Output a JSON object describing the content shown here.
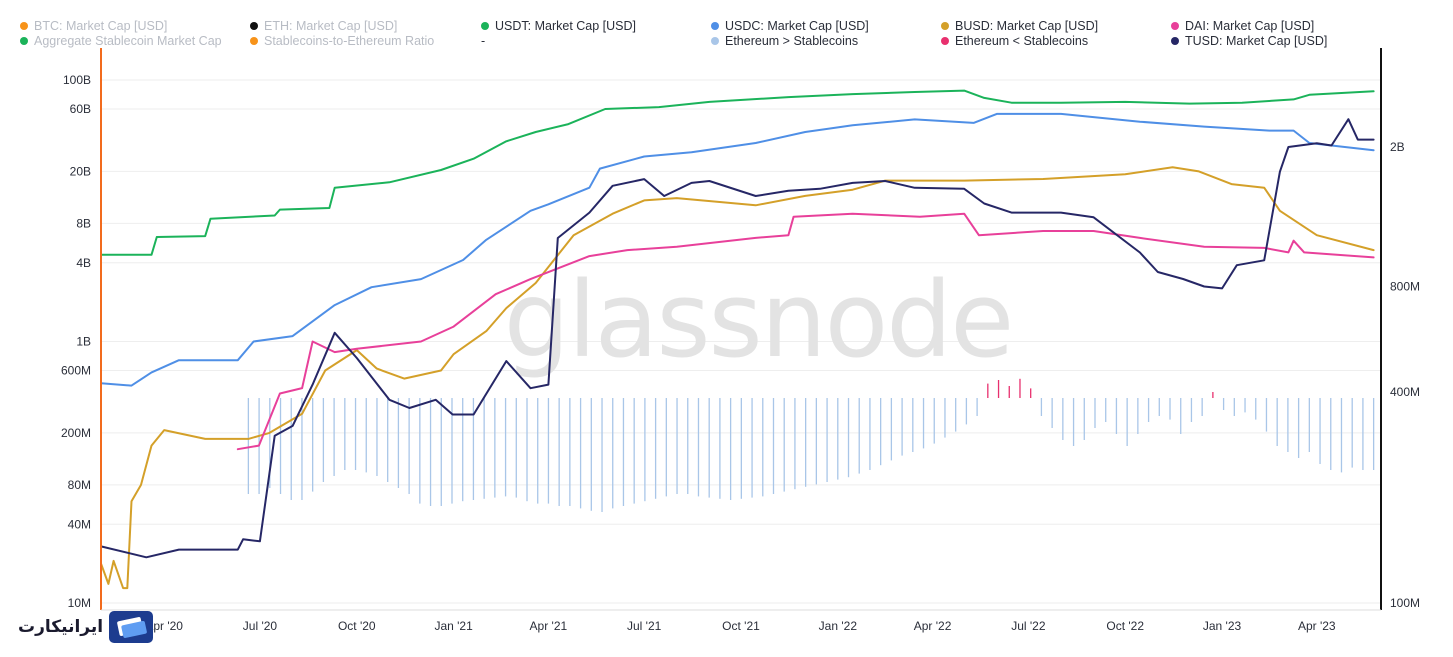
{
  "brand": {
    "watermark": "glassnode",
    "site_logo_text": "ایرانیکارت"
  },
  "legend": [
    {
      "label": "BTC: Market Cap [USD]",
      "color": "#f7931a",
      "active": false
    },
    {
      "label": "ETH: Market Cap [USD]",
      "color": "#111111",
      "active": false
    },
    {
      "label": "USDT: Market Cap [USD]",
      "color": "#1bb35a",
      "active": true
    },
    {
      "label": "USDC: Market Cap [USD]",
      "color": "#4f8fe6",
      "active": true
    },
    {
      "label": "BUSD: Market Cap [USD]",
      "color": "#d4a029",
      "active": true
    },
    {
      "label": "DAI: Market Cap [USD]",
      "color": "#e8409a",
      "active": true
    },
    {
      "label": "Aggregate Stablecoin Market Cap",
      "color": "#1bb35a",
      "active": false
    },
    {
      "label": "Stablecoins-to-Ethereum Ratio",
      "color": "#f7931a",
      "active": false
    },
    {
      "label": "-",
      "color": "",
      "active": true
    },
    {
      "label": "Ethereum > Stablecoins",
      "color": "#a9c6e8",
      "active": true
    },
    {
      "label": "Ethereum < Stablecoins",
      "color": "#e8306e",
      "active": true
    },
    {
      "label": "TUSD: Market Cap [USD]",
      "color": "#262766",
      "active": true
    }
  ],
  "chart_data": {
    "type": "line",
    "x_scale": "time",
    "y_left": {
      "scale": "log",
      "unit": "USD",
      "ticks": [
        "10M",
        "40M",
        "80M",
        "200M",
        "600M",
        "1B",
        "4B",
        "8B",
        "20B",
        "60B",
        "100B"
      ]
    },
    "y_right": {
      "scale": "log",
      "ticks": [
        "100M",
        "400M",
        "800M",
        "2B"
      ]
    },
    "x_ticks": [
      "Apr '20",
      "Jul '20",
      "Oct '20",
      "Jan '21",
      "Apr '21",
      "Jul '21",
      "Oct '21",
      "Jan '22",
      "Apr '22",
      "Jul '22",
      "Oct '22",
      "Jan '23",
      "Apr '23"
    ],
    "xlim": [
      "2020-02-01",
      "2023-06-01"
    ],
    "series": [
      {
        "name": "USDT: Market Cap [USD]",
        "color": "#1bb35a",
        "axis": "left",
        "points": [
          [
            "2020-02-01",
            4600000000.0
          ],
          [
            "2020-03-20",
            4600000000.0
          ],
          [
            "2020-03-25",
            6300000000.0
          ],
          [
            "2020-05-10",
            6400000000.0
          ],
          [
            "2020-05-15",
            8700000000.0
          ],
          [
            "2020-07-15",
            9200000000.0
          ],
          [
            "2020-07-20",
            10200000000.0
          ],
          [
            "2020-09-05",
            10500000000.0
          ],
          [
            "2020-09-10",
            15000000000.0
          ],
          [
            "2020-11-01",
            16500000000.0
          ],
          [
            "2020-12-20",
            20500000000.0
          ],
          [
            "2021-01-20",
            25000000000.0
          ],
          [
            "2021-02-20",
            34000000000.0
          ],
          [
            "2021-03-20",
            40000000000.0
          ],
          [
            "2021-04-20",
            46000000000.0
          ],
          [
            "2021-05-25",
            60000000000.0
          ],
          [
            "2021-07-15",
            62000000000.0
          ],
          [
            "2021-09-01",
            68000000000.0
          ],
          [
            "2021-11-15",
            74000000000.0
          ],
          [
            "2022-01-15",
            78000000000.0
          ],
          [
            "2022-03-15",
            81000000000.0
          ],
          [
            "2022-05-01",
            83000000000.0
          ],
          [
            "2022-05-20",
            73000000000.0
          ],
          [
            "2022-06-15",
            67000000000.0
          ],
          [
            "2022-08-01",
            67000000000.0
          ],
          [
            "2022-10-01",
            68000000000.0
          ],
          [
            "2022-12-01",
            66000000000.0
          ],
          [
            "2023-01-20",
            67000000000.0
          ],
          [
            "2023-03-10",
            71000000000.0
          ],
          [
            "2023-03-25",
            77000000000.0
          ],
          [
            "2023-05-25",
            82000000000.0
          ]
        ]
      },
      {
        "name": "USDC: Market Cap [USD]",
        "color": "#4f8fe6",
        "axis": "left",
        "points": [
          [
            "2020-02-01",
            480000000.0
          ],
          [
            "2020-03-01",
            460000000.0
          ],
          [
            "2020-03-20",
            580000000.0
          ],
          [
            "2020-04-15",
            720000000.0
          ],
          [
            "2020-06-10",
            720000000.0
          ],
          [
            "2020-06-25",
            1000000000.0
          ],
          [
            "2020-08-01",
            1100000000.0
          ],
          [
            "2020-09-10",
            1900000000.0
          ],
          [
            "2020-10-15",
            2600000000.0
          ],
          [
            "2020-12-01",
            3000000000.0
          ],
          [
            "2021-01-10",
            4200000000.0
          ],
          [
            "2021-02-01",
            6000000000.0
          ],
          [
            "2021-03-15",
            10000000000.0
          ],
          [
            "2021-04-01",
            11200000000.0
          ],
          [
            "2021-05-10",
            15000000000.0
          ],
          [
            "2021-05-20",
            21000000000.0
          ],
          [
            "2021-07-01",
            26000000000.0
          ],
          [
            "2021-08-15",
            28000000000.0
          ],
          [
            "2021-10-15",
            33000000000.0
          ],
          [
            "2021-12-01",
            40000000000.0
          ],
          [
            "2022-01-15",
            45000000000.0
          ],
          [
            "2022-03-15",
            50000000000.0
          ],
          [
            "2022-05-10",
            47000000000.0
          ],
          [
            "2022-06-01",
            55000000000.0
          ],
          [
            "2022-08-01",
            55000000000.0
          ],
          [
            "2022-10-15",
            48000000000.0
          ],
          [
            "2022-12-15",
            44000000000.0
          ],
          [
            "2023-02-15",
            41000000000.0
          ],
          [
            "2023-03-10",
            41000000000.0
          ],
          [
            "2023-03-25",
            33000000000.0
          ],
          [
            "2023-05-25",
            29000000000.0
          ]
        ]
      },
      {
        "name": "BUSD: Market Cap [USD]",
        "color": "#d4a029",
        "axis": "left",
        "points": [
          [
            "2020-02-01",
            20000000.0
          ],
          [
            "2020-02-08",
            14000000.0
          ],
          [
            "2020-02-13",
            21000000.0
          ],
          [
            "2020-02-22",
            13000000.0
          ],
          [
            "2020-02-26",
            13000000.0
          ],
          [
            "2020-03-01",
            60000000.0
          ],
          [
            "2020-03-10",
            80000000.0
          ],
          [
            "2020-03-20",
            160000000.0
          ],
          [
            "2020-04-01",
            210000000.0
          ],
          [
            "2020-05-10",
            180000000.0
          ],
          [
            "2020-06-20",
            180000000.0
          ],
          [
            "2020-07-10",
            200000000.0
          ],
          [
            "2020-08-10",
            280000000.0
          ],
          [
            "2020-09-01",
            600000000.0
          ],
          [
            "2020-10-01",
            860000000.0
          ],
          [
            "2020-10-20",
            620000000.0
          ],
          [
            "2020-11-15",
            520000000.0
          ],
          [
            "2020-12-20",
            600000000.0
          ],
          [
            "2021-01-01",
            800000000.0
          ],
          [
            "2021-02-01",
            1200000000.0
          ],
          [
            "2021-02-20",
            1800000000.0
          ],
          [
            "2021-03-20",
            2800000000.0
          ],
          [
            "2021-04-25",
            6500000000.0
          ],
          [
            "2021-06-01",
            9500000000.0
          ],
          [
            "2021-07-01",
            12000000000.0
          ],
          [
            "2021-08-01",
            12500000000.0
          ],
          [
            "2021-10-15",
            11000000000.0
          ],
          [
            "2021-12-01",
            13000000000.0
          ],
          [
            "2022-01-15",
            14500000000.0
          ],
          [
            "2022-02-15",
            17000000000.0
          ],
          [
            "2022-05-01",
            17000000000.0
          ],
          [
            "2022-07-15",
            17500000000.0
          ],
          [
            "2022-10-01",
            19000000000.0
          ],
          [
            "2022-11-15",
            21500000000.0
          ],
          [
            "2022-12-10",
            20000000000.0
          ],
          [
            "2023-01-10",
            16000000000.0
          ],
          [
            "2023-02-10",
            15000000000.0
          ],
          [
            "2023-02-25",
            10000000000.0
          ],
          [
            "2023-04-01",
            6500000000.0
          ],
          [
            "2023-05-25",
            5000000000.0
          ]
        ]
      },
      {
        "name": "DAI: Market Cap [USD]",
        "color": "#e8409a",
        "axis": "left",
        "points": [
          [
            "2020-06-10",
            150000000.0
          ],
          [
            "2020-06-30",
            160000000.0
          ],
          [
            "2020-07-20",
            400000000.0
          ],
          [
            "2020-08-10",
            440000000.0
          ],
          [
            "2020-08-20",
            1000000000.0
          ],
          [
            "2020-09-10",
            830000000.0
          ],
          [
            "2020-10-01",
            880000000.0
          ],
          [
            "2020-12-01",
            1000000000.0
          ],
          [
            "2021-01-01",
            1300000000.0
          ],
          [
            "2021-02-10",
            2300000000.0
          ],
          [
            "2021-03-15",
            3000000000.0
          ],
          [
            "2021-05-10",
            4500000000.0
          ],
          [
            "2021-06-15",
            5000000000.0
          ],
          [
            "2021-08-01",
            5300000000.0
          ],
          [
            "2021-10-15",
            6200000000.0
          ],
          [
            "2021-11-15",
            6500000000.0
          ],
          [
            "2021-11-20",
            9000000000.0
          ],
          [
            "2022-01-15",
            9500000000.0
          ],
          [
            "2022-03-20",
            9000000000.0
          ],
          [
            "2022-05-01",
            9500000000.0
          ],
          [
            "2022-05-15",
            6500000000.0
          ],
          [
            "2022-07-15",
            7000000000.0
          ],
          [
            "2022-09-01",
            7000000000.0
          ],
          [
            "2022-10-15",
            6200000000.0
          ],
          [
            "2022-12-15",
            5300000000.0
          ],
          [
            "2023-02-10",
            5200000000.0
          ],
          [
            "2023-03-05",
            4800000000.0
          ],
          [
            "2023-03-10",
            5900000000.0
          ],
          [
            "2023-03-20",
            4800000000.0
          ],
          [
            "2023-05-25",
            4400000000.0
          ]
        ]
      },
      {
        "name": "TUSD: Market Cap [USD]",
        "color": "#262766",
        "axis": "right",
        "points": [
          [
            "2020-02-01",
            145000000.0
          ],
          [
            "2020-03-15",
            135000000.0
          ],
          [
            "2020-04-15",
            142000000.0
          ],
          [
            "2020-06-10",
            142000000.0
          ],
          [
            "2020-06-15",
            152000000.0
          ],
          [
            "2020-07-01",
            150000000.0
          ],
          [
            "2020-07-15",
            300000000.0
          ],
          [
            "2020-08-01",
            320000000.0
          ],
          [
            "2020-08-20",
            420000000.0
          ],
          [
            "2020-09-10",
            590000000.0
          ],
          [
            "2020-10-01",
            500000000.0
          ],
          [
            "2020-11-01",
            380000000.0
          ],
          [
            "2020-11-20",
            360000000.0
          ],
          [
            "2020-12-15",
            380000000.0
          ],
          [
            "2020-12-31",
            345000000.0
          ],
          [
            "2021-01-20",
            345000000.0
          ],
          [
            "2021-02-20",
            490000000.0
          ],
          [
            "2021-03-15",
            410000000.0
          ],
          [
            "2021-04-01",
            420000000.0
          ],
          [
            "2021-04-10",
            1100000000.0
          ],
          [
            "2021-05-10",
            1300000000.0
          ],
          [
            "2021-06-01",
            1550000000.0
          ],
          [
            "2021-07-01",
            1620000000.0
          ],
          [
            "2021-07-20",
            1450000000.0
          ],
          [
            "2021-08-15",
            1580000000.0
          ],
          [
            "2021-09-01",
            1600000000.0
          ],
          [
            "2021-10-15",
            1450000000.0
          ],
          [
            "2021-11-15",
            1500000000.0
          ],
          [
            "2021-12-15",
            1520000000.0
          ],
          [
            "2022-01-15",
            1580000000.0
          ],
          [
            "2022-02-15",
            1600000000.0
          ],
          [
            "2022-03-15",
            1530000000.0
          ],
          [
            "2022-05-01",
            1520000000.0
          ],
          [
            "2022-05-20",
            1380000000.0
          ],
          [
            "2022-06-15",
            1300000000.0
          ],
          [
            "2022-08-01",
            1300000000.0
          ],
          [
            "2022-09-01",
            1260000000.0
          ],
          [
            "2022-10-15",
            1000000000.0
          ],
          [
            "2022-11-01",
            880000000.0
          ],
          [
            "2022-11-25",
            840000000.0
          ],
          [
            "2022-12-15",
            800000000.0
          ],
          [
            "2023-01-01",
            790000000.0
          ],
          [
            "2023-01-15",
            920000000.0
          ],
          [
            "2023-02-10",
            950000000.0
          ],
          [
            "2023-02-25",
            1700000000.0
          ],
          [
            "2023-03-05",
            2000000000.0
          ],
          [
            "2023-04-01",
            2050000000.0
          ],
          [
            "2023-04-15",
            2020000000.0
          ],
          [
            "2023-05-01",
            2400000000.0
          ],
          [
            "2023-05-10",
            2100000000.0
          ],
          [
            "2023-05-25",
            2100000000.0
          ]
        ]
      }
    ],
    "ratio_bars": {
      "x_start": "2020-06-20",
      "x_end": "2023-05-25",
      "above_color": "#e8306e",
      "below_color": "#a9c6e8",
      "values": [
        -0.8,
        -0.8,
        -0.75,
        -0.8,
        -0.85,
        -0.85,
        -0.78,
        -0.7,
        -0.65,
        -0.6,
        -0.6,
        -0.62,
        -0.65,
        -0.7,
        -0.75,
        -0.8,
        -0.88,
        -0.9,
        -0.9,
        -0.88,
        -0.86,
        -0.85,
        -0.84,
        -0.83,
        -0.82,
        -0.83,
        -0.86,
        -0.88,
        -0.88,
        -0.9,
        -0.9,
        -0.92,
        -0.94,
        -0.95,
        -0.92,
        -0.9,
        -0.88,
        -0.86,
        -0.84,
        -0.82,
        -0.8,
        -0.8,
        -0.82,
        -0.83,
        -0.84,
        -0.85,
        -0.84,
        -0.83,
        -0.82,
        -0.8,
        -0.78,
        -0.76,
        -0.74,
        -0.72,
        -0.7,
        -0.68,
        -0.66,
        -0.63,
        -0.6,
        -0.56,
        -0.52,
        -0.48,
        -0.45,
        -0.42,
        -0.38,
        -0.33,
        -0.28,
        -0.22,
        -0.15,
        0.12,
        0.15,
        0.1,
        0.16,
        0.08,
        -0.15,
        -0.25,
        -0.35,
        -0.4,
        -0.35,
        -0.25,
        -0.2,
        -0.3,
        -0.4,
        -0.3,
        -0.2,
        -0.15,
        -0.18,
        -0.3,
        -0.2,
        -0.15,
        0.05,
        -0.1,
        -0.15,
        -0.12,
        -0.18,
        -0.28,
        -0.4,
        -0.45,
        -0.5,
        -0.45,
        -0.55,
        -0.6,
        -0.62,
        -0.58,
        -0.6,
        -0.6
      ]
    }
  }
}
